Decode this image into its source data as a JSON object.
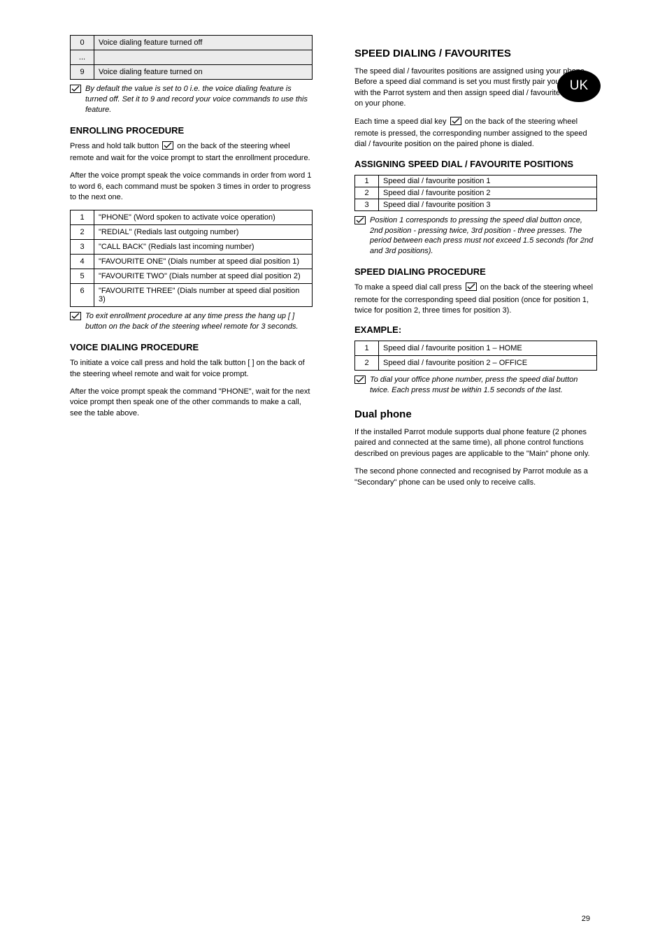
{
  "badge": "UK",
  "pageNumber": "29",
  "left": {
    "table1": {
      "rows": [
        {
          "code": "0",
          "label": "Voice dialing feature turned off"
        },
        {
          "code": "...",
          "label": ""
        },
        {
          "code": "9",
          "label": "Voice dialing feature turned on"
        }
      ]
    },
    "note1": "By default the value is set to 0 i.e. the voice dialing feature is turned off. Set it to 9 and record your voice commands to use this feature.",
    "enrollTitle": "ENROLLING PROCEDURE",
    "enrollPara1": "Press and hold talk button [ ] on the back of the steering wheel remote and wait for the voice prompt to start the enrollment procedure.",
    "enrollPara2": "After the voice prompt speak the voice commands in order from word 1 to word 6, each command must be spoken 3 times in order to progress to the next one.",
    "table2": {
      "rows": [
        {
          "code": "1",
          "label": "\"PHONE\" (Word spoken to activate voice operation)"
        },
        {
          "code": "2",
          "label": "\"REDIAL\" (Redials last outgoing number)"
        },
        {
          "code": "3",
          "label": "\"CALL BACK\" (Redials last incoming number)"
        },
        {
          "code": "4",
          "label": "\"FAVOURITE ONE\" (Dials number at speed dial position 1)"
        },
        {
          "code": "5",
          "label": "\"FAVOURITE TWO\" (Dials number at speed dial position 2)"
        },
        {
          "code": "6",
          "label": "\"FAVOURITE THREE\" (Dials number at speed dial position 3)"
        }
      ]
    },
    "note2": "To exit enrollment procedure at any time press the hang up [ ] button on the back of the steering wheel remote for 3 seconds.",
    "voiceDialTitle": "VOICE DIALING PROCEDURE",
    "voiceDialPara1": "To initiate a voice call press and hold the talk button [ ] on the back of the steering wheel remote and wait for voice prompt.",
    "voiceDialPara2": "After the voice prompt speak the command \"PHONE\", wait for the next voice prompt then speak one of the other commands to make a call, see the table above."
  },
  "right": {
    "speedTitle": "SPEED DIALING / FAVOURITES",
    "speedPara1": "The speed dial / favourites positions are assigned using your phone. Before a speed dial command is set you must firstly pair your phone with the Parrot system and then assign speed dial / favourite positions on your phone.",
    "speedPara2": "Each time a speed dial key [ ] on the back of the steering wheel remote is pressed, the corresponding number assigned to the speed dial / favourite position on the paired phone is dialed.",
    "assignTitle": "ASSIGNING SPEED DIAL / FAVOURITE POSITIONS",
    "table3": {
      "rows": [
        {
          "code": "1",
          "label": "Speed dial / favourite position 1"
        },
        {
          "code": "2",
          "label": "Speed dial / favourite position 2"
        },
        {
          "code": "3",
          "label": "Speed dial / favourite position 3"
        }
      ]
    },
    "note3": "Position 1 corresponds to pressing the speed dial button once, 2nd position - pressing twice, 3rd position - three presses. The period between each press must not exceed 1.5 seconds (for 2nd and 3rd positions).",
    "speedProcTitle": "SPEED DIALING PROCEDURE",
    "speedProcPara": "To make a speed dial call press [ ] on the back of the steering wheel remote for the corresponding speed dial position (once for position 1, twice for position 2, three times for position 3).",
    "exampleTitle": "EXAMPLE:",
    "table4": {
      "rows": [
        {
          "code": "1",
          "label": "Speed dial / favourite position 1 – HOME"
        },
        {
          "code": "2",
          "label": "Speed dial / favourite position 2 – OFFICE"
        }
      ]
    },
    "note4": "To dial your office phone number, press the speed dial button twice. Each press must be within 1.5 seconds of the last.",
    "dualTitle": "Dual phone",
    "dualPara1": "If the installed Parrot module supports dual phone feature (2 phones paired and connected at the same time), all phone control functions described on previous pages are applicable to the \"Main\" phone only.",
    "dualPara2": "The second phone connected and recognised by Parrot module as a \"Secondary\" phone can be used only to receive calls."
  }
}
